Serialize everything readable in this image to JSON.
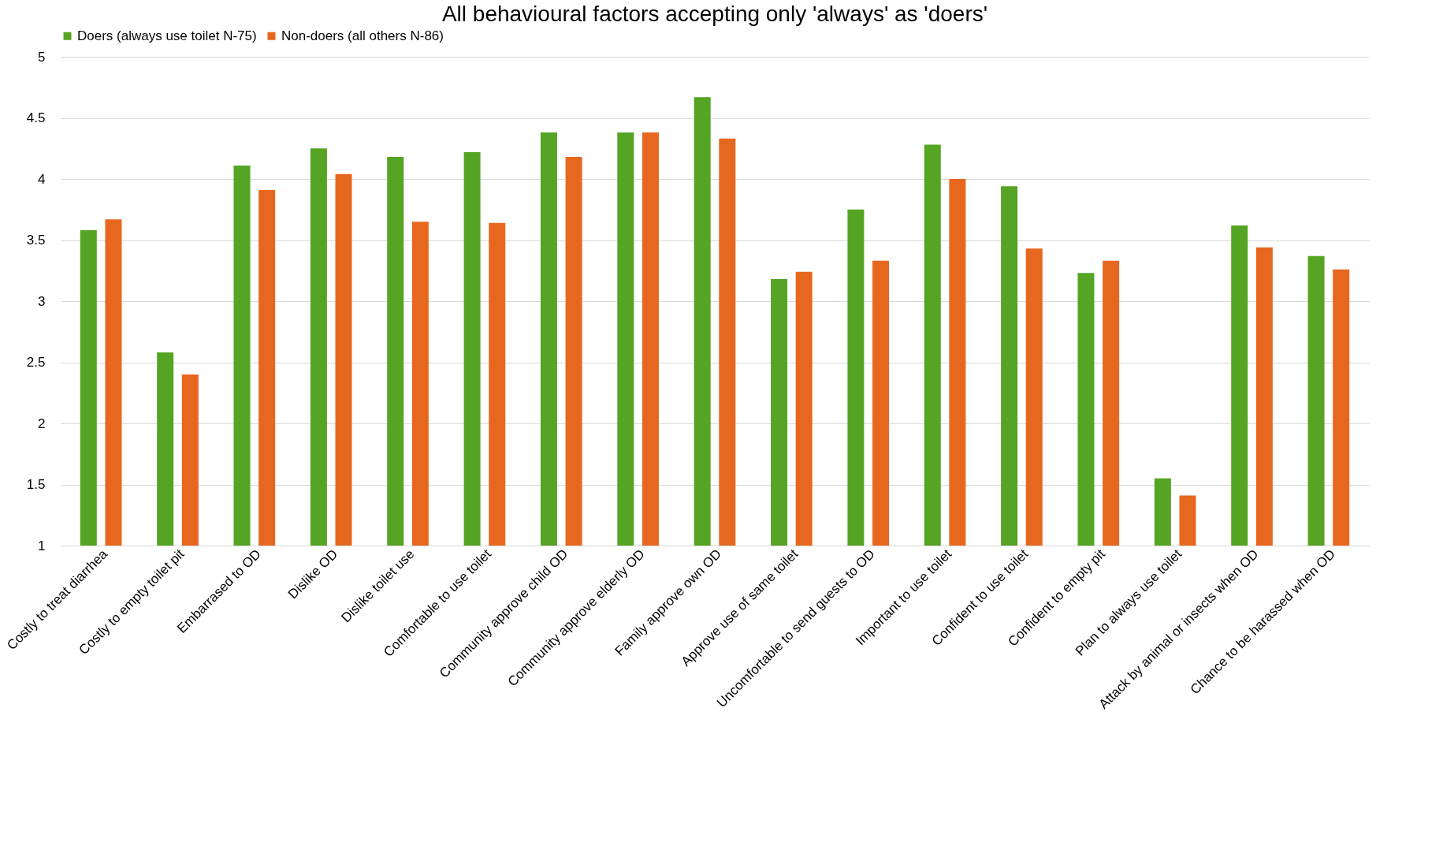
{
  "chart_data": {
    "type": "bar",
    "title": "All behavioural factors accepting only 'always' as 'doers'",
    "categories": [
      "Costly to treat diarrhea",
      "Costly to empty toilet pit",
      "Embarrased to OD",
      "Dislike OD",
      "Dislike toilet use",
      "Comfortable to use toilet",
      "Community approve child OD",
      "Community approve elderly OD",
      "Family approve own OD",
      "Approve use of same toilet",
      "Uncomfortable to send guests to OD",
      "Important to use toilet",
      "Confident to use toilet",
      "Confident to empty pit",
      "Plan to always use toilet",
      "Attack by animal or insects when OD",
      "Chance to be harassed when OD"
    ],
    "series": [
      {
        "name": "Doers (always use toilet N-75)",
        "color": "#55a423",
        "values": [
          3.58,
          2.58,
          4.11,
          4.25,
          4.18,
          4.22,
          4.38,
          4.38,
          4.67,
          3.18,
          3.75,
          4.28,
          3.94,
          3.23,
          1.55,
          3.62,
          3.37
        ]
      },
      {
        "name": "Non-doers (all others N-86)",
        "color": "#e8671e",
        "values": [
          3.67,
          2.4,
          3.91,
          4.04,
          3.65,
          3.64,
          4.18,
          4.38,
          4.33,
          3.24,
          3.33,
          4.0,
          3.43,
          3.33,
          1.41,
          3.44,
          3.26
        ]
      }
    ],
    "ylim": [
      1,
      5
    ],
    "yticks": [
      1,
      1.5,
      2,
      2.5,
      3,
      3.5,
      4,
      4.5,
      5
    ],
    "grid": "y",
    "legend": "top"
  }
}
